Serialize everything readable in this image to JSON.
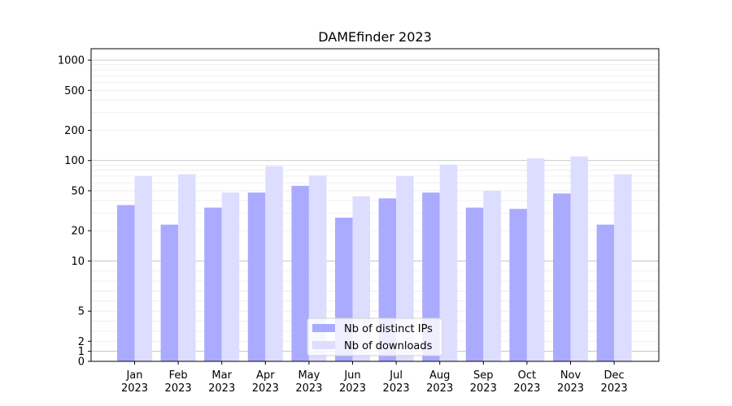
{
  "chart_data": {
    "type": "bar",
    "title": "DAMEfinder 2023",
    "xlabel": "",
    "ylabel": "",
    "yscale": "symlog",
    "ylim": [
      0,
      1300
    ],
    "grid": true,
    "legend_position": "bottom-center",
    "categories": [
      [
        "Jan",
        "2023"
      ],
      [
        "Feb",
        "2023"
      ],
      [
        "Mar",
        "2023"
      ],
      [
        "Apr",
        "2023"
      ],
      [
        "May",
        "2023"
      ],
      [
        "Jun",
        "2023"
      ],
      [
        "Jul",
        "2023"
      ],
      [
        "Aug",
        "2023"
      ],
      [
        "Sep",
        "2023"
      ],
      [
        "Oct",
        "2023"
      ],
      [
        "Nov",
        "2023"
      ],
      [
        "Dec",
        "2023"
      ]
    ],
    "yticks": [
      0,
      1,
      2,
      5,
      10,
      20,
      50,
      100,
      200,
      500,
      1000
    ],
    "series": [
      {
        "name": "Nb of distinct IPs",
        "color": "#aaaaff",
        "values": [
          36,
          23,
          34,
          48,
          56,
          27,
          42,
          48,
          34,
          33,
          47,
          23
        ]
      },
      {
        "name": "Nb of downloads",
        "color": "#ddddff",
        "values": [
          70,
          73,
          48,
          88,
          71,
          44,
          70,
          91,
          50,
          105,
          110,
          73
        ]
      }
    ]
  }
}
